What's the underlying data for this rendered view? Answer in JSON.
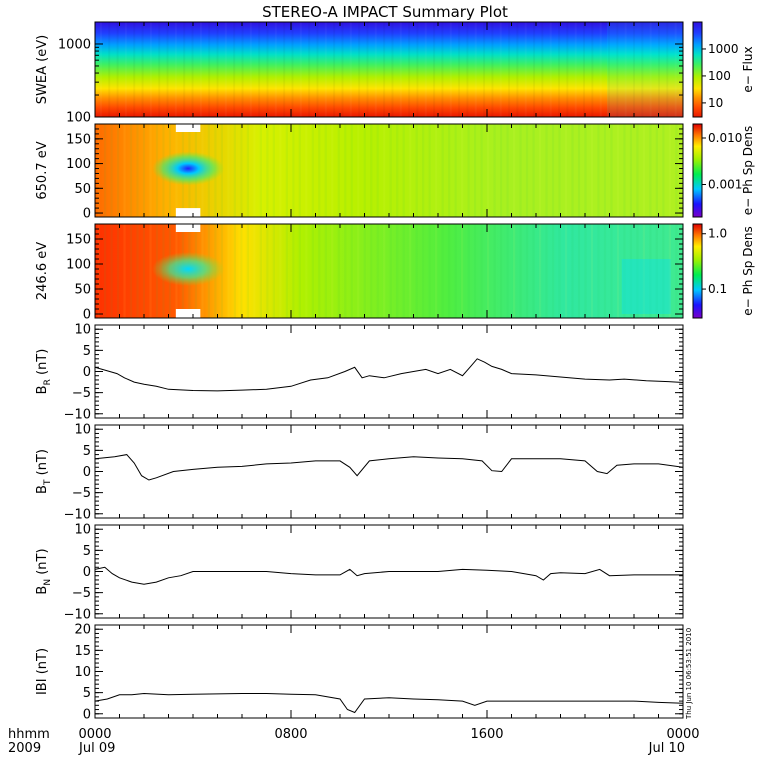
{
  "title": "STEREO-A IMPACT Summary Plot",
  "stamp": "Thu Jun 10 06:53:51 2010",
  "time_axis": {
    "row1_label": "hhmm",
    "row2_label": "2009",
    "ticks": [
      {
        "hour": 0,
        "label": "0000",
        "date": "Jul 09"
      },
      {
        "hour": 8,
        "label": "0800",
        "date": ""
      },
      {
        "hour": 16,
        "label": "1600",
        "date": ""
      },
      {
        "hour": 24,
        "label": "0000",
        "date": "Jul 10"
      }
    ],
    "range_hours": [
      0,
      24
    ]
  },
  "colors": {
    "frame": "#000000",
    "line": "#000000"
  },
  "chart_data": [
    {
      "type": "heatmap",
      "ylabel": "SWEA (eV)",
      "yscale": "log",
      "ylim": [
        100,
        2000
      ],
      "yticks": [
        {
          "v": 100,
          "label": "100"
        },
        {
          "v": 1000,
          "label": "1000"
        }
      ],
      "colorbar_label": "e− Flux",
      "colorbar_scale": "log",
      "colorbar_range": [
        3,
        10000
      ],
      "colorbar_ticks": [
        {
          "v": 10,
          "label": "10"
        },
        {
          "v": 100,
          "label": "100"
        },
        {
          "v": 1000,
          "label": "1000"
        }
      ],
      "profile": [
        {
          "e": 100,
          "v": 9000
        },
        {
          "e": 130,
          "v": 7500
        },
        {
          "e": 170,
          "v": 5500
        },
        {
          "e": 250,
          "v": 2500
        },
        {
          "e": 350,
          "v": 1100
        },
        {
          "e": 500,
          "v": 450
        },
        {
          "e": 700,
          "v": 180
        },
        {
          "e": 900,
          "v": 80
        },
        {
          "e": 1150,
          "v": 35
        },
        {
          "e": 1400,
          "v": 14
        },
        {
          "e": 1700,
          "v": 6
        },
        {
          "e": 2000,
          "v": 3
        }
      ]
    },
    {
      "type": "heatmap",
      "ylabel": "650.7 eV",
      "ylim": [
        -8,
        180
      ],
      "yticks": [
        {
          "v": 0,
          "label": "0"
        },
        {
          "v": 50,
          "label": "50"
        },
        {
          "v": 100,
          "label": "100"
        },
        {
          "v": 150,
          "label": "150"
        }
      ],
      "colorbar_label": "e− Ph Sp Dens",
      "colorbar_scale": "log",
      "colorbar_range": [
        0.0002,
        0.02
      ],
      "colorbar_ticks": [
        {
          "v": 0.001,
          "label": "0.001"
        },
        {
          "v": 0.01,
          "label": "0.010"
        }
      ],
      "gaps": [
        [
          3.3,
          4.3
        ]
      ]
    },
    {
      "type": "heatmap",
      "ylabel": "246.6 eV",
      "ylim": [
        -8,
        180
      ],
      "yticks": [
        {
          "v": 0,
          "label": "0"
        },
        {
          "v": 50,
          "label": "50"
        },
        {
          "v": 100,
          "label": "100"
        },
        {
          "v": 150,
          "label": "150"
        }
      ],
      "colorbar_label": "e− Ph Sp Dens",
      "colorbar_scale": "log",
      "colorbar_range": [
        0.03,
        1.5
      ],
      "colorbar_ticks": [
        {
          "v": 0.1,
          "label": "0.1"
        },
        {
          "v": 1.0,
          "label": "1.0"
        }
      ],
      "gaps": [
        [
          3.3,
          4.3
        ]
      ]
    },
    {
      "type": "line",
      "ylabel_main": "B",
      "ylabel_sub": "R",
      "ylabel_unit": " (nT)",
      "ylim": [
        -11,
        11
      ],
      "yticks": [
        {
          "v": -10,
          "label": "−10"
        },
        {
          "v": -5,
          "label": "−5"
        },
        {
          "v": 0,
          "label": "0"
        },
        {
          "v": 5,
          "label": "5"
        },
        {
          "v": 10,
          "label": "10"
        }
      ],
      "x": [
        0,
        0.3,
        0.6,
        0.9,
        1.2,
        1.6,
        2.0,
        2.5,
        3.0,
        4.0,
        5.0,
        6.0,
        7.0,
        8.0,
        8.8,
        9.5,
        10.2,
        10.6,
        10.9,
        11.2,
        11.8,
        12.5,
        13.0,
        13.5,
        14.0,
        14.5,
        15.0,
        15.3,
        15.6,
        15.9,
        16.2,
        16.6,
        17.0,
        18.0,
        19.0,
        20.0,
        21.0,
        21.6,
        22.5,
        23.4,
        24.0
      ],
      "y": [
        1,
        0.5,
        0,
        -0.5,
        -1.5,
        -2.5,
        -3,
        -3.5,
        -4.2,
        -4.5,
        -4.6,
        -4.4,
        -4.2,
        -3.5,
        -2,
        -1.5,
        0,
        1,
        -1.5,
        -1,
        -1.5,
        -0.5,
        0,
        0.5,
        -0.5,
        0.5,
        -1,
        1,
        3,
        2.2,
        1.2,
        0.5,
        -0.5,
        -0.8,
        -1.3,
        -1.8,
        -2,
        -1.8,
        -2.2,
        -2.4,
        -2.6
      ]
    },
    {
      "type": "line",
      "ylabel_main": "B",
      "ylabel_sub": "T",
      "ylabel_unit": " (nT)",
      "ylim": [
        -11,
        11
      ],
      "yticks": [
        {
          "v": -10,
          "label": "−10"
        },
        {
          "v": -5,
          "label": "−5"
        },
        {
          "v": 0,
          "label": "0"
        },
        {
          "v": 5,
          "label": "5"
        },
        {
          "v": 10,
          "label": "10"
        }
      ],
      "x": [
        0,
        0.8,
        1.3,
        1.6,
        1.9,
        2.2,
        2.5,
        3.2,
        4.0,
        5.0,
        6.0,
        7.0,
        8.0,
        9.0,
        10.0,
        10.4,
        10.7,
        11.2,
        12.0,
        13.0,
        14.0,
        15.0,
        15.8,
        16.2,
        16.6,
        17.0,
        18.0,
        19.0,
        20.0,
        20.5,
        20.9,
        21.3,
        22.0,
        23.0,
        24.0
      ],
      "y": [
        3,
        3.5,
        4,
        2,
        -1,
        -2,
        -1.5,
        0,
        0.5,
        1,
        1.2,
        1.8,
        2,
        2.5,
        2.5,
        1,
        -1,
        2.5,
        3,
        3.5,
        3.2,
        3,
        2.5,
        0.2,
        0,
        3,
        3,
        3,
        2.5,
        0,
        -0.5,
        1.5,
        1.8,
        1.8,
        1
      ]
    },
    {
      "type": "line",
      "ylabel_main": "B",
      "ylabel_sub": "N",
      "ylabel_unit": " (nT)",
      "ylim": [
        -11,
        11
      ],
      "yticks": [
        {
          "v": -10,
          "label": "−10"
        },
        {
          "v": -5,
          "label": "−5"
        },
        {
          "v": 0,
          "label": "0"
        },
        {
          "v": 5,
          "label": "5"
        },
        {
          "v": 10,
          "label": "10"
        }
      ],
      "x": [
        0,
        0.4,
        0.7,
        1.0,
        1.5,
        2.0,
        2.5,
        3.0,
        3.5,
        4.0,
        5.0,
        6.0,
        7.0,
        8.0,
        9.0,
        10.0,
        10.4,
        10.7,
        11.0,
        12.0,
        13.0,
        14.0,
        15.0,
        16.0,
        17.0,
        17.5,
        18.0,
        18.3,
        18.6,
        19.0,
        20.0,
        20.6,
        21.0,
        22.0,
        23.0,
        24.0
      ],
      "y": [
        0.5,
        1,
        -0.5,
        -1.5,
        -2.5,
        -3,
        -2.5,
        -1.5,
        -1,
        0,
        0,
        0,
        0,
        -0.5,
        -0.8,
        -0.8,
        0.5,
        -1,
        -0.5,
        0,
        0,
        0,
        0.5,
        0.3,
        0,
        -0.5,
        -1,
        -2,
        -0.5,
        -0.3,
        -0.5,
        0.5,
        -1,
        -0.8,
        -0.8,
        -0.8
      ]
    },
    {
      "type": "line",
      "ylabel_main": "IBI",
      "ylabel_sub": "",
      "ylabel_unit": " (nT)",
      "ylim": [
        -1,
        21
      ],
      "yticks": [
        {
          "v": 0,
          "label": "0"
        },
        {
          "v": 5,
          "label": "5"
        },
        {
          "v": 10,
          "label": "10"
        },
        {
          "v": 15,
          "label": "15"
        },
        {
          "v": 20,
          "label": "20"
        }
      ],
      "x": [
        0,
        0.5,
        1.0,
        1.5,
        2.0,
        3.0,
        4.0,
        5.0,
        6.0,
        7.0,
        8.0,
        9.0,
        10.0,
        10.3,
        10.6,
        11.0,
        12.0,
        13.0,
        14.0,
        15.0,
        15.5,
        16.0,
        17.0,
        18.0,
        19.0,
        20.0,
        21.0,
        22.0,
        23.0,
        24.0
      ],
      "y": [
        3,
        3.5,
        4.5,
        4.5,
        4.8,
        4.5,
        4.6,
        4.7,
        4.8,
        4.8,
        4.6,
        4.5,
        3.5,
        1,
        0.3,
        3.5,
        3.8,
        3.5,
        3.3,
        3,
        2,
        3,
        3,
        3,
        3,
        3,
        3,
        3,
        2.7,
        2.5
      ]
    }
  ]
}
